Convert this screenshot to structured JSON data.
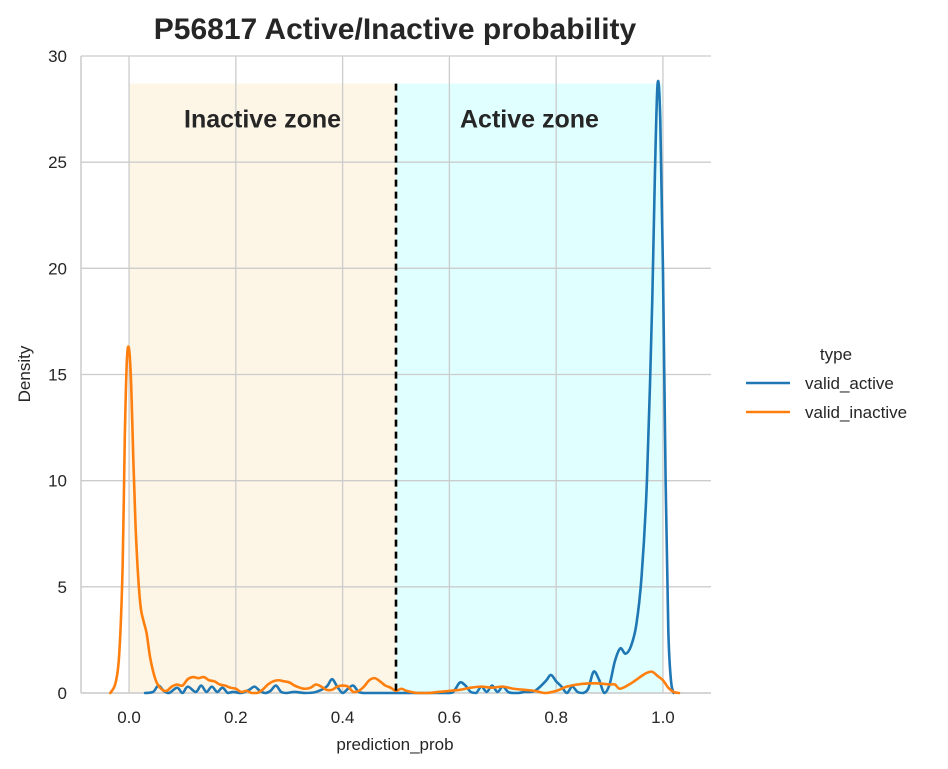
{
  "chart_data": {
    "type": "line",
    "title": "P56817  Active/Inactive probability",
    "xlabel": "prediction_prob",
    "ylabel": "Density",
    "xlim": [
      -0.09,
      1.09
    ],
    "ylim": [
      0,
      30
    ],
    "x_ticks": [
      0.0,
      0.2,
      0.4,
      0.6,
      0.8,
      1.0
    ],
    "x_tick_labels": [
      "0.0",
      "0.2",
      "0.4",
      "0.6",
      "0.8",
      "1.0"
    ],
    "y_ticks": [
      0,
      5,
      10,
      15,
      20,
      25,
      30
    ],
    "y_tick_labels": [
      "0",
      "5",
      "10",
      "15",
      "20",
      "25",
      "30"
    ],
    "grid": true,
    "threshold": 0.5,
    "zones": [
      {
        "label": "Inactive zone",
        "x_range": [
          0.0,
          0.5
        ],
        "y_top": 28.7,
        "color": "#fdf5e6"
      },
      {
        "label": "Active zone",
        "x_range": [
          0.5,
          1.0
        ],
        "y_top": 28.7,
        "color": "#e0ffff"
      }
    ],
    "legend": {
      "title": "type",
      "position": "right"
    },
    "series": [
      {
        "name": "valid_active",
        "color": "#1f77b4",
        "x": [
          0.03,
          0.045,
          0.055,
          0.065,
          0.075,
          0.09,
          0.1,
          0.11,
          0.125,
          0.135,
          0.145,
          0.155,
          0.165,
          0.175,
          0.185,
          0.195,
          0.21,
          0.225,
          0.235,
          0.245,
          0.255,
          0.265,
          0.275,
          0.285,
          0.295,
          0.31,
          0.33,
          0.35,
          0.37,
          0.38,
          0.39,
          0.4,
          0.41,
          0.42,
          0.43,
          0.44,
          0.45,
          0.46,
          0.48,
          0.5,
          0.55,
          0.6,
          0.61,
          0.62,
          0.63,
          0.64,
          0.65,
          0.66,
          0.67,
          0.68,
          0.69,
          0.7,
          0.71,
          0.72,
          0.73,
          0.74,
          0.76,
          0.78,
          0.79,
          0.8,
          0.81,
          0.82,
          0.83,
          0.84,
          0.85,
          0.86,
          0.87,
          0.88,
          0.89,
          0.9,
          0.91,
          0.92,
          0.93,
          0.94,
          0.95,
          0.96,
          0.97,
          0.98,
          0.985,
          0.99,
          0.995,
          1.0,
          1.005,
          1.01,
          1.015,
          1.02
        ],
        "y": [
          0.0,
          0.05,
          0.35,
          0.1,
          0.0,
          0.25,
          0.0,
          0.3,
          0.05,
          0.35,
          0.05,
          0.3,
          0.05,
          0.25,
          0.0,
          0.05,
          0.0,
          0.15,
          0.3,
          0.1,
          0.0,
          0.1,
          0.35,
          0.05,
          0.0,
          0.05,
          0.0,
          0.05,
          0.3,
          0.65,
          0.3,
          0.0,
          0.2,
          0.35,
          0.05,
          0.0,
          0.0,
          0.0,
          0.0,
          0.0,
          0.0,
          0.0,
          0.15,
          0.5,
          0.35,
          0.05,
          0.0,
          0.3,
          0.05,
          0.35,
          0.05,
          0.3,
          0.05,
          0.0,
          0.0,
          0.05,
          0.1,
          0.55,
          0.85,
          0.55,
          0.3,
          0.0,
          0.3,
          0.05,
          0.0,
          0.2,
          1.0,
          0.65,
          0.0,
          0.4,
          1.5,
          2.1,
          1.85,
          2.2,
          3.2,
          5.5,
          10.0,
          18.5,
          24.5,
          28.7,
          27.0,
          20.0,
          10.0,
          3.0,
          0.6,
          0.0
        ]
      },
      {
        "name": "valid_inactive",
        "color": "#ff7f0e",
        "x": [
          -0.035,
          -0.025,
          -0.018,
          -0.012,
          -0.008,
          -0.004,
          0.0,
          0.004,
          0.008,
          0.012,
          0.017,
          0.022,
          0.027,
          0.033,
          0.04,
          0.05,
          0.06,
          0.07,
          0.08,
          0.09,
          0.1,
          0.11,
          0.12,
          0.13,
          0.14,
          0.15,
          0.16,
          0.17,
          0.18,
          0.19,
          0.2,
          0.21,
          0.22,
          0.23,
          0.24,
          0.25,
          0.26,
          0.27,
          0.28,
          0.29,
          0.3,
          0.31,
          0.32,
          0.33,
          0.34,
          0.35,
          0.36,
          0.37,
          0.38,
          0.39,
          0.4,
          0.41,
          0.42,
          0.43,
          0.44,
          0.45,
          0.46,
          0.47,
          0.48,
          0.49,
          0.5,
          0.51,
          0.52,
          0.54,
          0.56,
          0.58,
          0.6,
          0.62,
          0.64,
          0.66,
          0.68,
          0.7,
          0.72,
          0.74,
          0.76,
          0.78,
          0.8,
          0.82,
          0.84,
          0.86,
          0.88,
          0.9,
          0.91,
          0.92,
          0.94,
          0.96,
          0.97,
          0.98,
          0.99,
          1.0,
          1.01,
          1.02,
          1.03
        ],
        "y": [
          0.0,
          0.5,
          2.0,
          6.0,
          12.0,
          15.7,
          16.2,
          14.5,
          11.0,
          8.0,
          5.5,
          4.0,
          3.4,
          2.8,
          1.6,
          0.6,
          0.2,
          0.1,
          0.3,
          0.4,
          0.35,
          0.65,
          0.75,
          0.7,
          0.75,
          0.6,
          0.55,
          0.4,
          0.35,
          0.25,
          0.2,
          0.05,
          0.1,
          0.0,
          0.0,
          0.15,
          0.4,
          0.55,
          0.6,
          0.55,
          0.5,
          0.35,
          0.25,
          0.2,
          0.25,
          0.4,
          0.3,
          0.15,
          0.15,
          0.3,
          0.35,
          0.3,
          0.05,
          0.1,
          0.3,
          0.6,
          0.7,
          0.55,
          0.35,
          0.25,
          0.1,
          0.2,
          0.1,
          0.0,
          0.0,
          0.05,
          0.1,
          0.15,
          0.25,
          0.3,
          0.25,
          0.3,
          0.2,
          0.15,
          0.1,
          0.0,
          0.1,
          0.3,
          0.4,
          0.45,
          0.45,
          0.4,
          0.4,
          0.2,
          0.45,
          0.8,
          0.95,
          1.0,
          0.8,
          0.6,
          0.25,
          0.05,
          0.0
        ]
      }
    ]
  }
}
